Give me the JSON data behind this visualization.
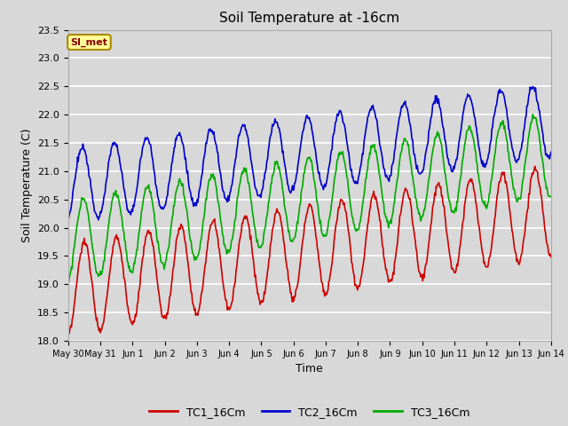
{
  "title": "Soil Temperature at -16cm",
  "xlabel": "Time",
  "ylabel": "Soil Temperature (C)",
  "ylim": [
    18.0,
    23.5
  ],
  "yticks": [
    18.0,
    18.5,
    19.0,
    19.5,
    20.0,
    20.5,
    21.0,
    21.5,
    22.0,
    22.5,
    23.0,
    23.5
  ],
  "bg_color": "#d8d8d8",
  "plot_bg_color": "#d8d8d8",
  "grid_color": "#ffffff",
  "legend_label": "SI_met",
  "legend_bg": "#ffff99",
  "legend_border": "#aa8800",
  "legend_text_color": "#880000",
  "series": {
    "TC1_16Cm": {
      "color": "#cc0000",
      "lw": 1.2
    },
    "TC2_16Cm": {
      "color": "#0000cc",
      "lw": 1.2
    },
    "TC3_16Cm": {
      "color": "#00aa00",
      "lw": 1.2
    }
  },
  "xtick_labels": [
    "May 30",
    "May 31",
    "Jun 1",
    "Jun 2",
    "Jun 3",
    "Jun 4",
    "Jun 5",
    "Jun 6",
    "Jun 7",
    "Jun 8",
    "Jun 9",
    "Jun 10",
    "Jun 11",
    "Jun 12",
    "Jun 13",
    "Jun 14"
  ],
  "n_days": 15,
  "pts_per_day": 48
}
